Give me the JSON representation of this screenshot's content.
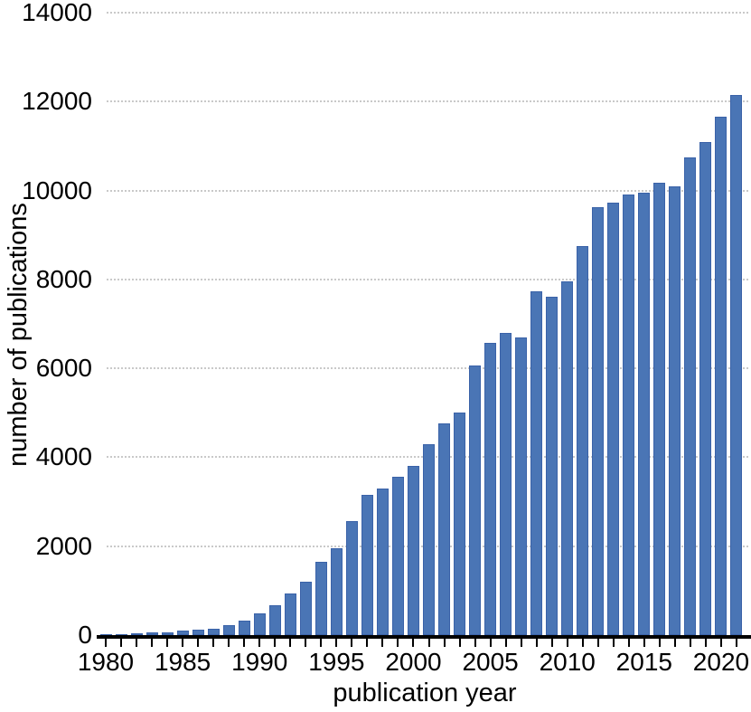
{
  "figure": {
    "background_color": "#ffffff",
    "text_color": "#000000"
  },
  "chart_data": {
    "type": "bar",
    "title": "",
    "xlabel": "publication year",
    "ylabel": "number of publications",
    "x": [
      1980,
      1981,
      1982,
      1983,
      1984,
      1985,
      1986,
      1987,
      1988,
      1989,
      1990,
      1991,
      1992,
      1993,
      1994,
      1995,
      1996,
      1997,
      1998,
      1999,
      2000,
      2001,
      2002,
      2003,
      2004,
      2005,
      2006,
      2007,
      2008,
      2009,
      2010,
      2011,
      2012,
      2013,
      2014,
      2015,
      2016,
      2017,
      2018,
      2019,
      2020,
      2021
    ],
    "values": [
      10,
      25,
      40,
      55,
      70,
      95,
      120,
      150,
      220,
      330,
      480,
      670,
      930,
      1200,
      1650,
      1950,
      2570,
      3160,
      3300,
      3560,
      3800,
      4290,
      4770,
      5010,
      6060,
      6570,
      6800,
      6690,
      7730,
      7610,
      7960,
      8740,
      9620,
      9720,
      9900,
      9950,
      10170,
      10100,
      10750,
      11100,
      11650,
      12150
    ],
    "ylim": [
      0,
      14000
    ],
    "ytick_interval": 2000,
    "xtick_label_interval": 5,
    "grid": "horizontal-dotted",
    "legend": "none",
    "bar_color": "#4a75b5",
    "bar_edge_color": "#3a62a8",
    "gridline_color": "#c9c9c9",
    "axis_color": "#000000"
  }
}
